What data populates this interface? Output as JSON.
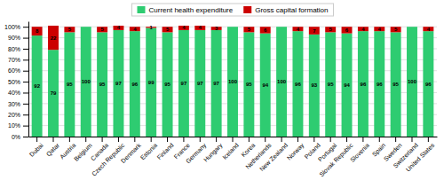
{
  "chart_data": {
    "type": "bar",
    "stacked": true,
    "categories": [
      "Dubai",
      "Qatar",
      "Austria",
      "Belgium",
      "Canada",
      "Czech Republic",
      "Denmark",
      "Estonia",
      "Finland",
      "France",
      "Germany",
      "Hungary",
      "Iceland",
      "Korea",
      "Netherlands",
      "New Zealand",
      "Norway",
      "Poland",
      "Portugal",
      "Slovak Republic",
      "Slovenia",
      "Spain",
      "Sweden",
      "Switzerland",
      "United States"
    ],
    "series": [
      {
        "name": "Current health expenditure",
        "color": "#2ECC71",
        "values": [
          92,
          79,
          95,
          100,
          95,
          97,
          96,
          99,
          95,
          97,
          97,
          97,
          100,
          95,
          94,
          100,
          96,
          93,
          95,
          94,
          96,
          96,
          95,
          100,
          96
        ]
      },
      {
        "name": "Gross capital formation",
        "color": "#CC0000",
        "values": [
          8,
          22,
          5,
          0,
          5,
          4,
          4,
          1,
          5,
          4,
          4,
          3,
          0,
          5,
          6,
          0,
          4,
          7,
          5,
          6,
          4,
          4,
          5,
          0,
          4
        ]
      }
    ],
    "ylim": [
      0,
      105
    ],
    "yticks": [
      {
        "value": 0,
        "label": "0%"
      },
      {
        "value": 10,
        "label": "10%"
      },
      {
        "value": 20,
        "label": "20%"
      },
      {
        "value": 30,
        "label": "30%"
      },
      {
        "value": 40,
        "label": "40%"
      },
      {
        "value": 50,
        "label": "50%"
      },
      {
        "value": 60,
        "label": "60%"
      },
      {
        "value": 70,
        "label": "70%"
      },
      {
        "value": 80,
        "label": "80%"
      },
      {
        "value": 90,
        "label": "90%"
      },
      {
        "value": 100,
        "label": "100%"
      }
    ],
    "grid": true,
    "legend": "top",
    "data_labels": true
  }
}
